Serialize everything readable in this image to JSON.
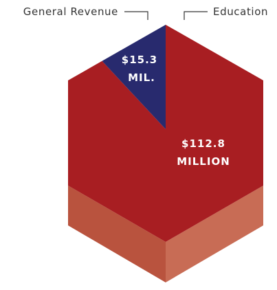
{
  "chart_data": {
    "type": "pie",
    "title": "",
    "categories": [
      "General Revenue",
      "Education"
    ],
    "values": [
      15.3,
      112.8
    ],
    "legend": [
      "General Revenue",
      "Education"
    ],
    "slice_labels": [
      [
        "$15.3",
        "MIL."
      ],
      [
        "$112.8",
        "MILLION"
      ]
    ],
    "units": "USD millions",
    "colors": {
      "general_revenue": "#282a6e",
      "education": "#a81e22",
      "side_left": "#b9533e",
      "side_right": "#c86c55",
      "leader_line": "#333333"
    }
  }
}
